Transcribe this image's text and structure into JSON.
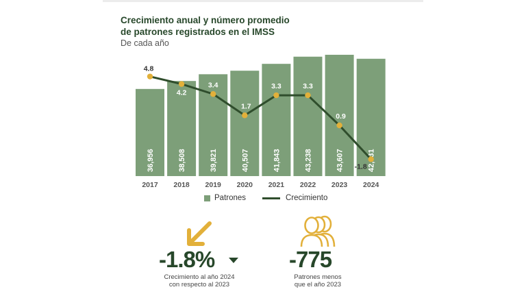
{
  "header": {
    "title_line1": "Crecimiento anual y número promedio",
    "title_line2": "de patrones registrados en el IMSS",
    "subtitle": "De cada año"
  },
  "chart_data": {
    "type": "bar",
    "title": "Crecimiento anual y número promedio de patrones registrados en el IMSS",
    "subtitle": "De cada año",
    "categories": [
      "2017",
      "2018",
      "2019",
      "2020",
      "2021",
      "2022",
      "2023",
      "2024"
    ],
    "series": [
      {
        "name": "Patrones",
        "type": "bar",
        "values": [
          36956,
          38508,
          39821,
          40507,
          41843,
          43238,
          43607,
          42831
        ],
        "labels": [
          "36,956",
          "38,508",
          "39,821",
          "40,507",
          "41,843",
          "43,238",
          "43,607",
          "42,831"
        ]
      },
      {
        "name": "Crecimiento",
        "type": "line",
        "values": [
          4.8,
          4.2,
          3.4,
          1.7,
          3.3,
          3.3,
          0.9,
          -1.8
        ],
        "labels": [
          "4.8",
          "4.2",
          "3.4",
          "1.7",
          "3.3",
          "3.3",
          "0.9",
          "-1.8"
        ]
      }
    ],
    "legend": [
      "Patrones",
      "Crecimiento"
    ],
    "legend_position": "bottom",
    "grid": false
  },
  "legend": {
    "bars": "Patrones",
    "line": "Crecimiento"
  },
  "stats": [
    {
      "value": "-1.8%",
      "caption_line1": "Crecimiento al año 2024",
      "caption_line2": "con respecto al 2023"
    },
    {
      "value": "-775",
      "caption_line1": "Patrones menos",
      "caption_line2": "que el año 2023"
    }
  ],
  "colors": {
    "bar": "#7d9f79",
    "line": "#2f4d2c",
    "marker": "#e2b03a",
    "title": "#27472a",
    "accent": "#e2b03a"
  }
}
